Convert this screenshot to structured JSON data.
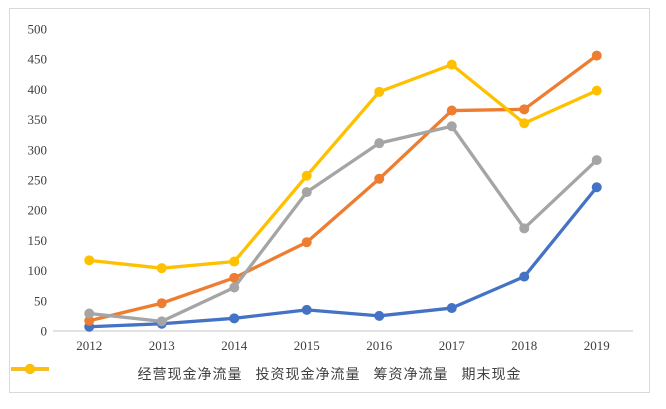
{
  "chart_data": {
    "type": "line",
    "title": "",
    "xlabel": "",
    "ylabel": "",
    "categories": [
      "2012",
      "2013",
      "2014",
      "2015",
      "2016",
      "2017",
      "2018",
      "2019"
    ],
    "series": [
      {
        "name": "经营现金净流量",
        "color": "#4472C4",
        "values": [
          7,
          12,
          21,
          35,
          25,
          38,
          90,
          238
        ]
      },
      {
        "name": "投资现金净流量",
        "color": "#ED7D31",
        "values": [
          17,
          46,
          88,
          147,
          252,
          365,
          367,
          456
        ]
      },
      {
        "name": "筹资净流量",
        "color": "#A5A5A5",
        "values": [
          29,
          16,
          72,
          230,
          311,
          339,
          170,
          283
        ]
      },
      {
        "name": "期末现金",
        "color": "#FFC000",
        "values": [
          117,
          104,
          115,
          257,
          396,
          441,
          344,
          398
        ]
      }
    ],
    "ylim": [
      0,
      500
    ],
    "ytick_step": 50,
    "yticks": [
      0,
      50,
      100,
      150,
      200,
      250,
      300,
      350,
      400,
      450,
      500
    ],
    "grid": false,
    "legend_position": "bottom",
    "colors": {
      "border": "#d9d9d9",
      "axis_line": "#d9d9d9",
      "tick_text": "#404040",
      "background": "#ffffff"
    }
  }
}
